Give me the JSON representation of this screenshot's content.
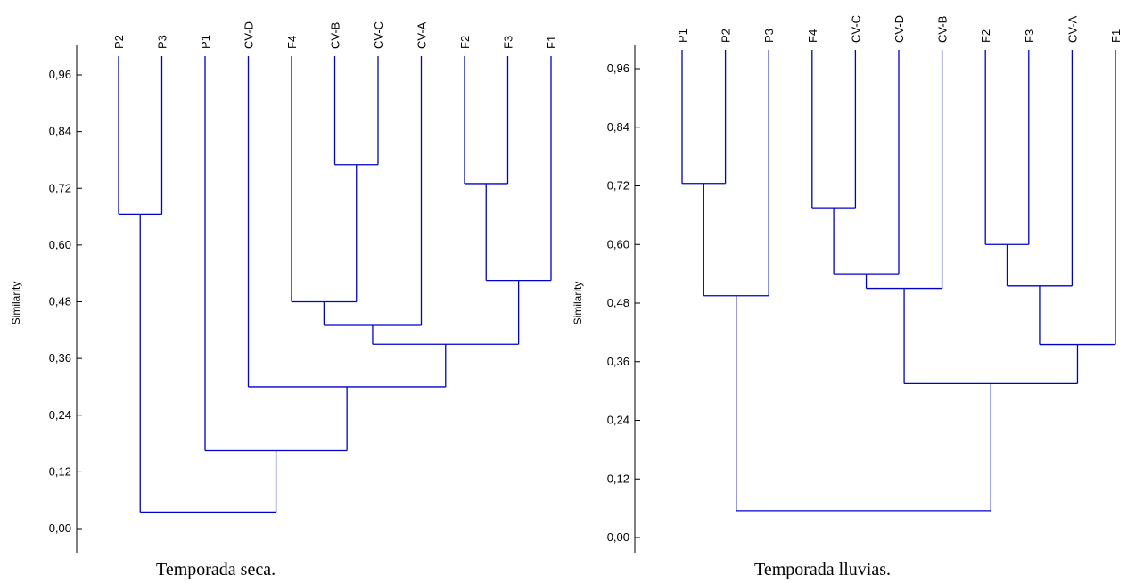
{
  "line_color": "#0000CC",
  "charts": [
    {
      "caption": "Temporada seca.",
      "ylabel": "Similarity",
      "ticks": [
        "0,96",
        "0,84",
        "0,72",
        "0,60",
        "0,48",
        "0,36",
        "0,24",
        "0,12",
        "0,00"
      ],
      "ylim": [
        0,
        0.96
      ],
      "leaves": [
        "P2",
        "P3",
        "P1",
        "CV-D",
        "F4",
        "CV-B",
        "CV-C",
        "CV-A",
        "F2",
        "F3",
        "F1"
      ],
      "merges": [
        {
          "a": "P2",
          "b": "P3",
          "sim": 0.665
        },
        {
          "a": "CV-B",
          "b": "CV-C",
          "sim": 0.77
        },
        {
          "a": "F2",
          "b": "F3",
          "sim": 0.73
        },
        {
          "a": "F4",
          "b": "CV-B+CV-C",
          "sim": 0.48
        },
        {
          "a": "F2+F3",
          "b": "F1",
          "sim": 0.525
        },
        {
          "a": "F4+CV-B+CV-C",
          "b": "CV-A",
          "sim": 0.43
        },
        {
          "a": "F4..CV-A",
          "b": "F2..F1",
          "sim": 0.39
        },
        {
          "a": "CV-D",
          "b": "F4..F1",
          "sim": 0.3
        },
        {
          "a": "P1",
          "b": "CV-D..F1",
          "sim": 0.165
        },
        {
          "a": "P2+P3",
          "b": "P1..F1",
          "sim": 0.035
        }
      ]
    },
    {
      "caption": "Temporada lluvias.",
      "ylabel": "Similarity",
      "ticks": [
        "0,96",
        "0,84",
        "0,72",
        "0,60",
        "0,48",
        "0,36",
        "0,24",
        "0,12",
        "0,00"
      ],
      "ylim": [
        0,
        0.96
      ],
      "leaves": [
        "P1",
        "P2",
        "P3",
        "F4",
        "CV-C",
        "CV-D",
        "CV-B",
        "F2",
        "F3",
        "CV-A",
        "F1"
      ],
      "merges": [
        {
          "a": "P1",
          "b": "P2",
          "sim": 0.725
        },
        {
          "a": "P1+P2",
          "b": "P3",
          "sim": 0.495
        },
        {
          "a": "F4",
          "b": "CV-C",
          "sim": 0.675
        },
        {
          "a": "F4+CV-C",
          "b": "CV-D",
          "sim": 0.54
        },
        {
          "a": "F4..CV-D",
          "b": "CV-B",
          "sim": 0.51
        },
        {
          "a": "F2",
          "b": "F3",
          "sim": 0.6
        },
        {
          "a": "F2+F3",
          "b": "CV-A",
          "sim": 0.515
        },
        {
          "a": "F2..CV-A",
          "b": "F1",
          "sim": 0.395
        },
        {
          "a": "F4..CV-B",
          "b": "F2..F1",
          "sim": 0.315
        },
        {
          "a": "P1..P3",
          "b": "F4..F1",
          "sim": 0.055
        }
      ]
    }
  ]
}
